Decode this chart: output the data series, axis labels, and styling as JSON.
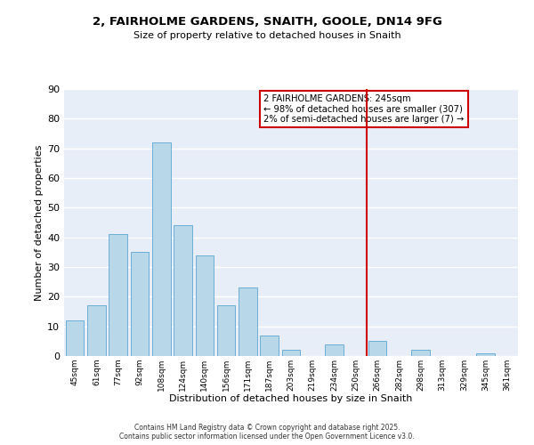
{
  "title1": "2, FAIRHOLME GARDENS, SNAITH, GOOLE, DN14 9FG",
  "title2": "Size of property relative to detached houses in Snaith",
  "xlabel": "Distribution of detached houses by size in Snaith",
  "ylabel": "Number of detached properties",
  "bar_labels": [
    "45sqm",
    "61sqm",
    "77sqm",
    "92sqm",
    "108sqm",
    "124sqm",
    "140sqm",
    "156sqm",
    "171sqm",
    "187sqm",
    "203sqm",
    "219sqm",
    "234sqm",
    "250sqm",
    "266sqm",
    "282sqm",
    "298sqm",
    "313sqm",
    "329sqm",
    "345sqm",
    "361sqm"
  ],
  "bar_heights": [
    12,
    17,
    41,
    35,
    72,
    44,
    34,
    17,
    23,
    7,
    2,
    0,
    4,
    0,
    5,
    0,
    2,
    0,
    0,
    1,
    0
  ],
  "bar_color": "#b8d8ea",
  "bar_edge_color": "#6aaed6",
  "bg_color": "#e8eef8",
  "grid_color": "#ffffff",
  "vline_x_pos": 13.5,
  "vline_color": "#cc0000",
  "ylim": [
    0,
    90
  ],
  "yticks": [
    0,
    10,
    20,
    30,
    40,
    50,
    60,
    70,
    80,
    90
  ],
  "legend_title": "2 FAIRHOLME GARDENS: 245sqm",
  "legend_line1": "← 98% of detached houses are smaller (307)",
  "legend_line2": "2% of semi-detached houses are larger (7) →",
  "legend_box_color": "#ffffff",
  "legend_border_color": "#cc0000",
  "footer1": "Contains HM Land Registry data © Crown copyright and database right 2025.",
  "footer2": "Contains public sector information licensed under the Open Government Licence v3.0."
}
